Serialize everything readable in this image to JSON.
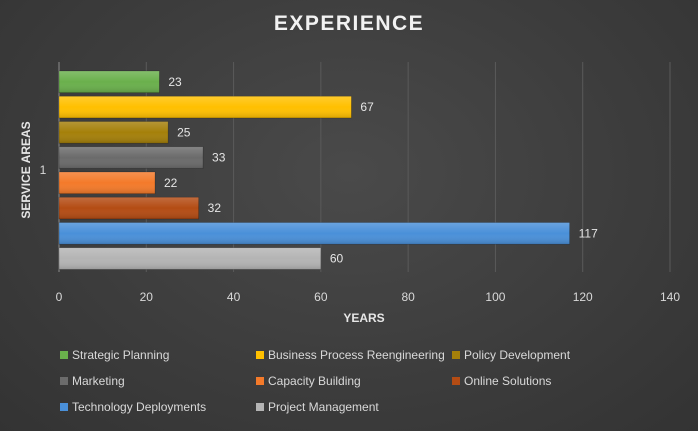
{
  "chart_data": {
    "type": "bar",
    "orientation": "horizontal",
    "title": "EXPERIENCE",
    "xlabel": "YEARS",
    "ylabel": "SERVICE AREAS",
    "category_label": "1",
    "xlim": [
      0,
      140
    ],
    "xticks": [
      0,
      20,
      40,
      60,
      80,
      100,
      120,
      140
    ],
    "grid": true,
    "legend_position": "bottom",
    "series": [
      {
        "name": "Strategic Planning",
        "value": 23,
        "color": "#6ab04c"
      },
      {
        "name": "Business Process Reengineering",
        "value": 67,
        "color": "#ffc000"
      },
      {
        "name": "Policy Development",
        "value": 25,
        "color": "#a5800a"
      },
      {
        "name": "Marketing",
        "value": 33,
        "color": "#6b6b6b"
      },
      {
        "name": "Capacity Building",
        "value": 22,
        "color": "#f47a2a"
      },
      {
        "name": "Online Solutions",
        "value": 32,
        "color": "#b44c14"
      },
      {
        "name": "Technology Deployments",
        "value": 117,
        "color": "#4a90d9"
      },
      {
        "name": "Project Management",
        "value": 60,
        "color": "#b4b4b4"
      }
    ]
  }
}
